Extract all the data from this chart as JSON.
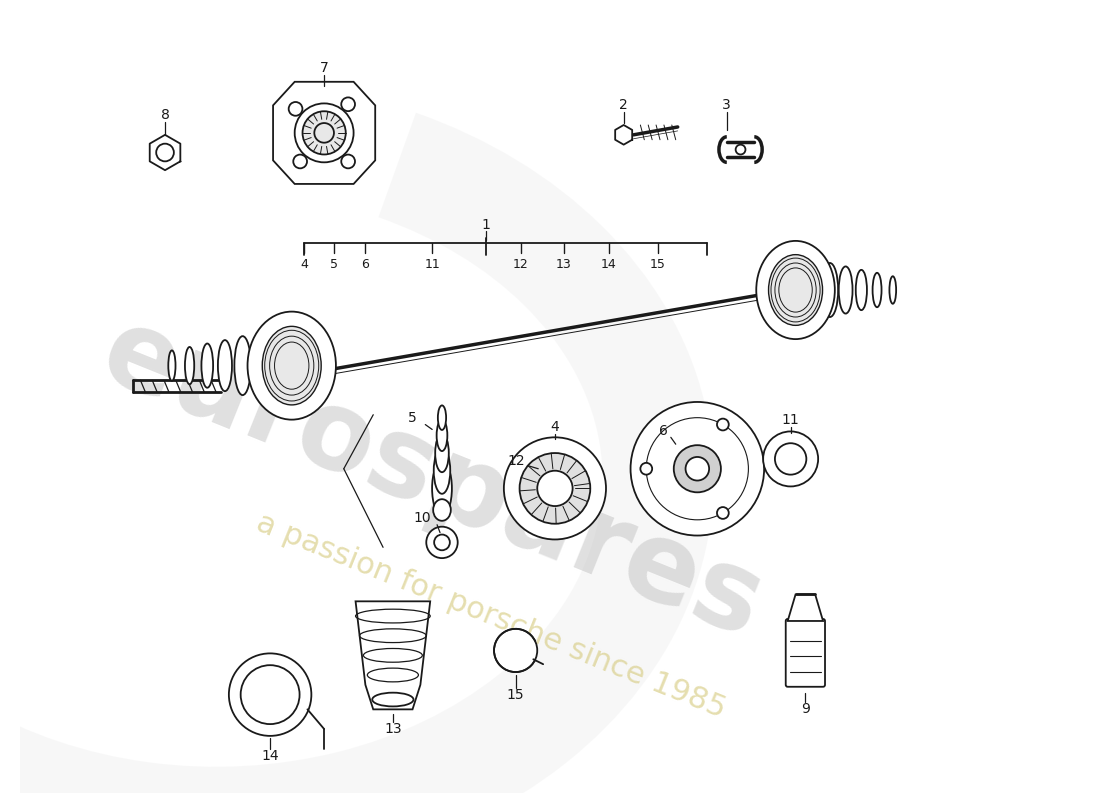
{
  "background_color": "#ffffff",
  "line_color": "#1a1a1a",
  "watermark_text1": "eurospares",
  "watermark_text2": "a passion for porsche since 1985",
  "watermark_color1": "#bbbbbb",
  "watermark_color2": "#d4c87a",
  "watermark_alpha1": 0.45,
  "watermark_alpha2": 0.6,
  "watermark_fontsize1": 80,
  "watermark_fontsize2": 22,
  "watermark_rotation": -22,
  "fig_width": 11.0,
  "fig_height": 8.0,
  "dpi": 100
}
